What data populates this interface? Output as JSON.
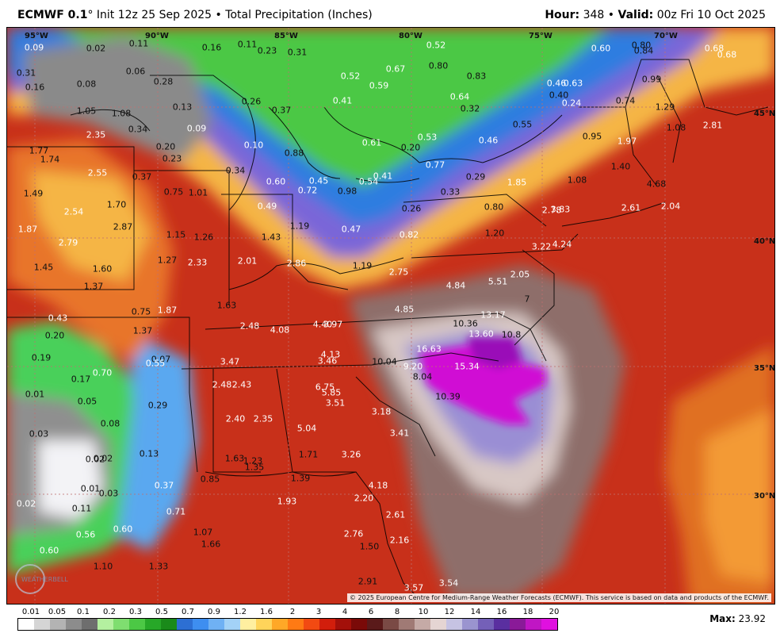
{
  "header": {
    "model": "ECMWF 0.1",
    "degree": "°",
    "init": "Init 12z 25 Sep 2025",
    "sep1": "•",
    "product": "Total Precipitation (Inches)",
    "hour_label": "Hour:",
    "hour_value": "348",
    "sep2": "•",
    "valid_label": "Valid:",
    "valid_value": "00z Fri 10 Oct 2025"
  },
  "coordinates": {
    "lon": [
      "95°W",
      "90°W",
      "85°W",
      "80°W",
      "75°W",
      "70°W"
    ],
    "lat": [
      "45°N",
      "40°N",
      "35°N",
      "30°N"
    ]
  },
  "values": [
    {
      "t": "0.09",
      "c": "light"
    },
    {
      "t": "0.02",
      "c": "dark"
    },
    {
      "t": "0.11",
      "c": "dark"
    },
    {
      "t": "0.16",
      "c": "dark"
    },
    {
      "t": "0.11",
      "c": "dark"
    },
    {
      "t": "0.23",
      "c": "dark"
    },
    {
      "t": "0.31",
      "c": "dark"
    },
    {
      "t": "0.52",
      "c": "light"
    },
    {
      "t": "0.80",
      "c": "dark"
    },
    {
      "t": "0.84",
      "c": "dark"
    },
    {
      "t": "0.60",
      "c": "light"
    },
    {
      "t": "0.68",
      "c": "light"
    },
    {
      "t": "0.68",
      "c": "light"
    },
    {
      "t": "0.31",
      "c": "dark"
    },
    {
      "t": "0.06",
      "c": "dark"
    },
    {
      "t": "0.16",
      "c": "dark"
    },
    {
      "t": "0.08",
      "c": "dark"
    },
    {
      "t": "0.28",
      "c": "dark"
    },
    {
      "t": "0.52",
      "c": "light"
    },
    {
      "t": "0.59",
      "c": "light"
    },
    {
      "t": "0.67",
      "c": "light"
    },
    {
      "t": "0.80",
      "c": "dark"
    },
    {
      "t": "0.83",
      "c": "dark"
    },
    {
      "t": "0.46",
      "c": "light"
    },
    {
      "t": "0.63",
      "c": "light"
    },
    {
      "t": "0.99",
      "c": "dark"
    },
    {
      "t": "0.13",
      "c": "dark"
    },
    {
      "t": "0.26",
      "c": "dark"
    },
    {
      "t": "0.37",
      "c": "dark"
    },
    {
      "t": "0.41",
      "c": "light"
    },
    {
      "t": "0.64",
      "c": "light"
    },
    {
      "t": "0.32",
      "c": "dark"
    },
    {
      "t": "0.40",
      "c": "dark"
    },
    {
      "t": "0.24",
      "c": "light"
    },
    {
      "t": "0.74",
      "c": "dark"
    },
    {
      "t": "1.29",
      "c": "dark"
    },
    {
      "t": "1.05",
      "c": "dark"
    },
    {
      "t": "1.08",
      "c": "dark"
    },
    {
      "t": "0.34",
      "c": "dark"
    },
    {
      "t": "0.09",
      "c": "light"
    },
    {
      "t": "0.55",
      "c": "dark"
    },
    {
      "t": "1.08",
      "c": "dark"
    },
    {
      "t": "2.81",
      "c": "light"
    },
    {
      "t": "2.35",
      "c": "light"
    },
    {
      "t": "0.20",
      "c": "dark"
    },
    {
      "t": "0.10",
      "c": "light"
    },
    {
      "t": "0.61",
      "c": "light"
    },
    {
      "t": "0.20",
      "c": "dark"
    },
    {
      "t": "0.53",
      "c": "light"
    },
    {
      "t": "0.46",
      "c": "light"
    },
    {
      "t": "0.95",
      "c": "dark"
    },
    {
      "t": "1.97",
      "c": "light"
    },
    {
      "t": "1.77",
      "c": "dark"
    },
    {
      "t": "1.74",
      "c": "dark"
    },
    {
      "t": "0.23",
      "c": "dark"
    },
    {
      "t": "0.88",
      "c": "dark"
    },
    {
      "t": "0.77",
      "c": "light"
    },
    {
      "t": "1.40",
      "c": "dark"
    },
    {
      "t": "2.55",
      "c": "light"
    },
    {
      "t": "0.37",
      "c": "dark"
    },
    {
      "t": "0.34",
      "c": "dark"
    },
    {
      "t": "0.60",
      "c": "light"
    },
    {
      "t": "0.45",
      "c": "light"
    },
    {
      "t": "0.54",
      "c": "light"
    },
    {
      "t": "0.41",
      "c": "light"
    },
    {
      "t": "0.29",
      "c": "dark"
    },
    {
      "t": "1.85",
      "c": "light"
    },
    {
      "t": "1.08",
      "c": "dark"
    },
    {
      "t": "4.68",
      "c": "dark"
    },
    {
      "t": "1.49",
      "c": "dark"
    },
    {
      "t": "0.75",
      "c": "dark"
    },
    {
      "t": "1.01",
      "c": "dark"
    },
    {
      "t": "0.72",
      "c": "light"
    },
    {
      "t": "0.98",
      "c": "dark"
    },
    {
      "t": "0.33",
      "c": "dark"
    },
    {
      "t": "2.54",
      "c": "light"
    },
    {
      "t": "1.70",
      "c": "dark"
    },
    {
      "t": "0.49",
      "c": "light"
    },
    {
      "t": "0.26",
      "c": "dark"
    },
    {
      "t": "0.80",
      "c": "dark"
    },
    {
      "t": "2.78",
      "c": "light"
    },
    {
      "t": "3.83",
      "c": "light"
    },
    {
      "t": "2.61",
      "c": "light"
    },
    {
      "t": "2.04",
      "c": "light"
    },
    {
      "t": "1.87",
      "c": "light"
    },
    {
      "t": "2.87",
      "c": "dark"
    },
    {
      "t": "1.19",
      "c": "dark"
    },
    {
      "t": "0.47",
      "c": "light"
    },
    {
      "t": "0.82",
      "c": "light"
    },
    {
      "t": "1.20",
      "c": "dark"
    },
    {
      "t": "2.79",
      "c": "light"
    },
    {
      "t": "1.15",
      "c": "dark"
    },
    {
      "t": "1.26",
      "c": "dark"
    },
    {
      "t": "1.43",
      "c": "dark"
    },
    {
      "t": "3.22",
      "c": "light"
    },
    {
      "t": "4.24",
      "c": "light"
    },
    {
      "t": "1.45",
      "c": "dark"
    },
    {
      "t": "1.60",
      "c": "dark"
    },
    {
      "t": "1.27",
      "c": "dark"
    },
    {
      "t": "2.33",
      "c": "light"
    },
    {
      "t": "2.01",
      "c": "light"
    },
    {
      "t": "2.86",
      "c": "light"
    },
    {
      "t": "1.19",
      "c": "dark"
    },
    {
      "t": "2.75",
      "c": "light"
    },
    {
      "t": "1.37",
      "c": "dark"
    },
    {
      "t": "4.84",
      "c": "light"
    },
    {
      "t": "5.51",
      "c": "light"
    },
    {
      "t": "2.05",
      "c": "light"
    },
    {
      "t": "0.75",
      "c": "dark"
    },
    {
      "t": "1.87",
      "c": "light"
    },
    {
      "t": "1.63",
      "c": "dark"
    },
    {
      "t": "4.85",
      "c": "light"
    },
    {
      "t": "7",
      "c": "dark"
    },
    {
      "t": "0.43",
      "c": "light"
    },
    {
      "t": "1.37",
      "c": "dark"
    },
    {
      "t": "2.48",
      "c": "light"
    },
    {
      "t": "4.08",
      "c": "light"
    },
    {
      "t": "4.40",
      "c": "light"
    },
    {
      "t": "3.97",
      "c": "light"
    },
    {
      "t": "10.36",
      "c": "dark"
    },
    {
      "t": "13.17",
      "c": "light"
    },
    {
      "t": "0.20",
      "c": "dark"
    },
    {
      "t": "13.60",
      "c": "light"
    },
    {
      "t": "10.8",
      "c": "dark"
    },
    {
      "t": "0.19",
      "c": "dark"
    },
    {
      "t": "0.07",
      "c": "dark"
    },
    {
      "t": "4.13",
      "c": "light"
    },
    {
      "t": "16.63",
      "c": "light"
    },
    {
      "t": "0.55",
      "c": "light"
    },
    {
      "t": "3.47",
      "c": "light"
    },
    {
      "t": "3.46",
      "c": "light"
    },
    {
      "t": "10.04",
      "c": "dark"
    },
    {
      "t": "9.20",
      "c": "light"
    },
    {
      "t": "15.34",
      "c": "light"
    },
    {
      "t": "0.70",
      "c": "light"
    },
    {
      "t": "8.04",
      "c": "dark"
    },
    {
      "t": "0.17",
      "c": "dark"
    },
    {
      "t": "2.48",
      "c": "light"
    },
    {
      "t": "2.43",
      "c": "light"
    },
    {
      "t": "6.75",
      "c": "light"
    },
    {
      "t": "5.85",
      "c": "light"
    },
    {
      "t": "10.39",
      "c": "dark"
    },
    {
      "t": "0.01",
      "c": "dark"
    },
    {
      "t": "0.05",
      "c": "dark"
    },
    {
      "t": "3.51",
      "c": "light"
    },
    {
      "t": "0.29",
      "c": "dark"
    },
    {
      "t": "3.18",
      "c": "light"
    },
    {
      "t": "0.08",
      "c": "dark"
    },
    {
      "t": "2.40",
      "c": "light"
    },
    {
      "t": "2.35",
      "c": "light"
    },
    {
      "t": "5.04",
      "c": "light"
    },
    {
      "t": "3.41",
      "c": "light"
    },
    {
      "t": "0.03",
      "c": "dark"
    },
    {
      "t": "0.13",
      "c": "dark"
    },
    {
      "t": "1.71",
      "c": "dark"
    },
    {
      "t": "3.26",
      "c": "light"
    },
    {
      "t": "0.02",
      "c": "dark"
    },
    {
      "t": "0.02",
      "c": "dark"
    },
    {
      "t": "1.63",
      "c": "dark"
    },
    {
      "t": "1.23",
      "c": "dark"
    },
    {
      "t": "1.35",
      "c": "dark"
    },
    {
      "t": "0.01",
      "c": "dark"
    },
    {
      "t": "0.37",
      "c": "light"
    },
    {
      "t": "0.85",
      "c": "dark"
    },
    {
      "t": "1.39",
      "c": "dark"
    },
    {
      "t": "4.18",
      "c": "light"
    },
    {
      "t": "0.03",
      "c": "dark"
    },
    {
      "t": "0.02",
      "c": "light"
    },
    {
      "t": "1.93",
      "c": "light"
    },
    {
      "t": "2.20",
      "c": "light"
    },
    {
      "t": "0.11",
      "c": "dark"
    },
    {
      "t": "0.71",
      "c": "light"
    },
    {
      "t": "2.61",
      "c": "light"
    },
    {
      "t": "0.56",
      "c": "light"
    },
    {
      "t": "0.60",
      "c": "light"
    },
    {
      "t": "1.07",
      "c": "dark"
    },
    {
      "t": "2.76",
      "c": "light"
    },
    {
      "t": "0.60",
      "c": "light"
    },
    {
      "t": "1.66",
      "c": "dark"
    },
    {
      "t": "1.50",
      "c": "dark"
    },
    {
      "t": "2.16",
      "c": "light"
    },
    {
      "t": "1.10",
      "c": "dark"
    },
    {
      "t": "1.33",
      "c": "dark"
    },
    {
      "t": "2.91",
      "c": "dark"
    },
    {
      "t": "3.57",
      "c": "light"
    },
    {
      "t": "3.54",
      "c": "light"
    }
  ],
  "copyright": "© 2025 European Centre for Medium-Range Weather Forecasts (ECMWF). This service is based on data and products of the ECMWF.",
  "legend": {
    "labels": [
      "0.01",
      "0.05",
      "0.1",
      "0.2",
      "0.3",
      "0.5",
      "0.7",
      "0.9",
      "1.2",
      "1.6",
      "2",
      "3",
      "4",
      "6",
      "8",
      "10",
      "12",
      "14",
      "16",
      "18",
      "20"
    ],
    "colors": [
      "#ffffff",
      "#d5d5d5",
      "#b3b3b3",
      "#8c8c8c",
      "#6e6e6e",
      "#b4f0a0",
      "#7fde70",
      "#4cc845",
      "#27a828",
      "#1a8a1a",
      "#2d6fd3",
      "#3e8ef0",
      "#6fb1f4",
      "#a3d2f7",
      "#ffefa0",
      "#ffd45a",
      "#ffa827",
      "#ff7a14",
      "#f24a12",
      "#d21e0c",
      "#a3100a",
      "#7a0a08",
      "#5a1a1a",
      "#7a4a45",
      "#a07a75",
      "#c5aaa6",
      "#e5d5d3",
      "#c6c3e3",
      "#9a94cf",
      "#7460b8",
      "#5a2fa0",
      "#8a1a98",
      "#c016c4",
      "#e010e0"
    ],
    "max_label": "Max:",
    "max_value": "23.92"
  },
  "logo_text": "WEATHERBELL"
}
